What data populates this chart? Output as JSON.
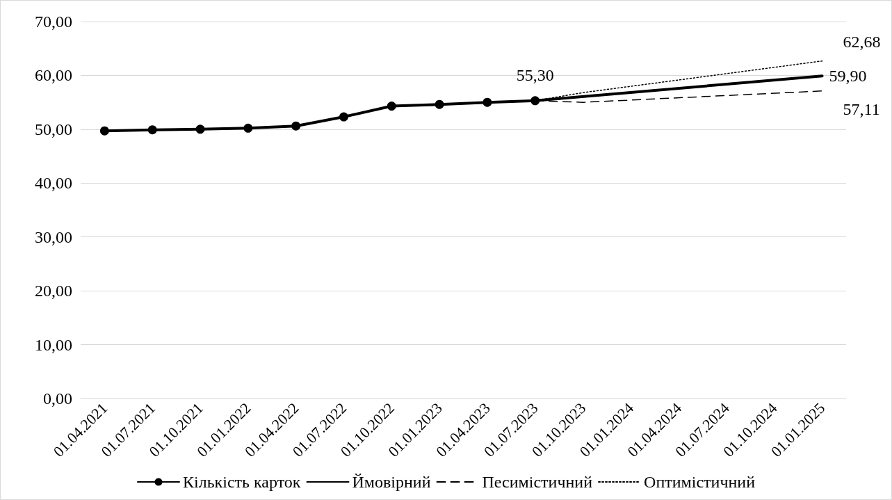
{
  "chart_data": {
    "type": "line",
    "categories": [
      "01.04.2021",
      "01.07.2021",
      "01.10.2021",
      "01.01.2022",
      "01.04.2022",
      "01.07.2022",
      "01.10.2022",
      "01.01.2023",
      "01.04.2023",
      "01.07.2023",
      "01.10.2023",
      "01.01.2024",
      "01.04.2024",
      "01.07.2024",
      "01.10.2024",
      "01.01.2025"
    ],
    "series": [
      {
        "name": "Кількість карток",
        "color": "#000000",
        "marker": "circle",
        "line_style": "solid",
        "values": [
          49.7,
          49.9,
          50.0,
          50.2,
          50.6,
          52.3,
          54.3,
          54.6,
          55.0,
          55.3,
          null,
          null,
          null,
          null,
          null,
          null
        ],
        "value_labels": [
          null,
          null,
          null,
          null,
          null,
          null,
          null,
          null,
          null,
          "55,30",
          null,
          null,
          null,
          null,
          null,
          null
        ]
      },
      {
        "name": "Ймовірний",
        "color": "#000000",
        "marker": "none",
        "line_style": "solid",
        "values": [
          null,
          null,
          null,
          null,
          null,
          null,
          null,
          null,
          null,
          55.3,
          null,
          null,
          null,
          null,
          null,
          59.9
        ],
        "value_labels": [
          null,
          null,
          null,
          null,
          null,
          null,
          null,
          null,
          null,
          null,
          null,
          null,
          null,
          null,
          null,
          "59,90"
        ]
      },
      {
        "name": "Песимістичний",
        "color": "#000000",
        "marker": "none",
        "line_style": "dashed",
        "values": [
          null,
          null,
          null,
          null,
          null,
          null,
          null,
          null,
          null,
          55.3,
          55.0,
          null,
          null,
          null,
          null,
          57.11
        ],
        "value_labels": [
          null,
          null,
          null,
          null,
          null,
          null,
          null,
          null,
          null,
          null,
          null,
          null,
          null,
          null,
          null,
          "57,11"
        ]
      },
      {
        "name": "Оптимістичний",
        "color": "#000000",
        "marker": "none",
        "line_style": "dotted",
        "values": [
          null,
          null,
          null,
          null,
          null,
          null,
          null,
          null,
          null,
          55.3,
          56.8,
          null,
          null,
          null,
          null,
          62.68
        ],
        "value_labels": [
          null,
          null,
          null,
          null,
          null,
          null,
          null,
          null,
          null,
          null,
          null,
          null,
          null,
          null,
          null,
          "62,68"
        ]
      }
    ],
    "ylim": [
      0,
      70
    ],
    "yticks": [
      {
        "value": 0,
        "label": "0,00"
      },
      {
        "value": 10,
        "label": "10,00"
      },
      {
        "value": 20,
        "label": "20,00"
      },
      {
        "value": 30,
        "label": "30,00"
      },
      {
        "value": 40,
        "label": "40,00"
      },
      {
        "value": 50,
        "label": "50,00"
      },
      {
        "value": 60,
        "label": "60,00"
      },
      {
        "value": 70,
        "label": "70,00"
      }
    ],
    "grid": "y",
    "legend": "bottom"
  }
}
